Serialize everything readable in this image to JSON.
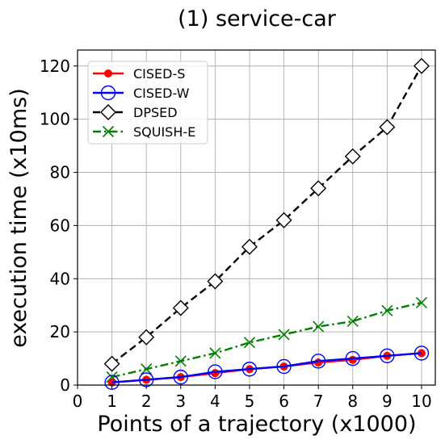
{
  "chart_data": {
    "type": "line",
    "title": "(1) service-car",
    "xlabel": "Points of a trajectory (x1000)",
    "ylabel": "execution time (x10ms)",
    "xlim": [
      0,
      10.4
    ],
    "ylim": [
      0,
      126
    ],
    "xticks": [
      0,
      1,
      2,
      3,
      4,
      5,
      6,
      7,
      8,
      9,
      10
    ],
    "yticks": [
      0,
      20,
      40,
      60,
      80,
      100,
      120
    ],
    "grid": true,
    "legend_position": "top-left",
    "x": [
      1,
      2,
      3,
      4,
      5,
      6,
      7,
      8,
      9,
      10
    ],
    "series": [
      {
        "name": "CISED-S",
        "values": [
          1,
          2,
          3,
          4.5,
          6,
          7,
          8.5,
          9.5,
          11,
          12
        ],
        "color": "#ff0000",
        "line_style": "solid",
        "marker": "filled-circle"
      },
      {
        "name": "CISED-W",
        "values": [
          1,
          2,
          3,
          5,
          6,
          7,
          9,
          10,
          11,
          12
        ],
        "color": "#0000ff",
        "line_style": "solid",
        "marker": "open-circle"
      },
      {
        "name": "DPSED",
        "values": [
          8,
          18,
          29,
          39,
          52,
          62,
          74,
          86,
          97,
          120
        ],
        "color": "#000000",
        "line_style": "dashed",
        "marker": "open-diamond"
      },
      {
        "name": "SQUISH-E",
        "values": [
          3,
          6,
          9,
          12,
          16,
          19,
          22,
          24,
          28,
          31
        ],
        "color": "#008000",
        "line_style": "dash-dot",
        "marker": "x"
      }
    ]
  }
}
